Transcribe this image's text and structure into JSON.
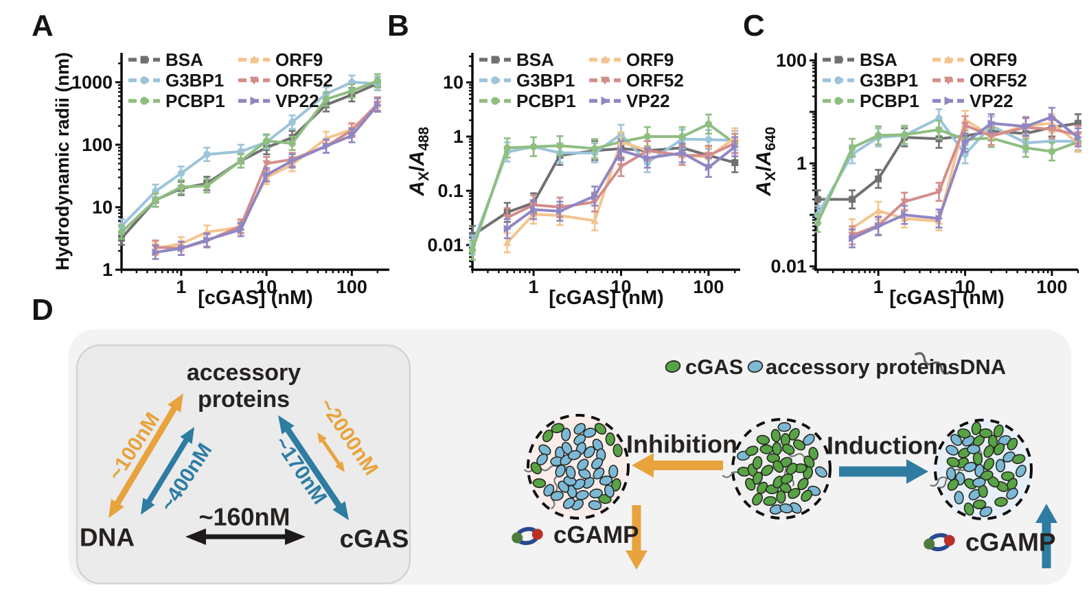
{
  "panels": {
    "a": "A",
    "b": "B",
    "c": "C",
    "d": "D"
  },
  "chart_data": [
    {
      "id": "A",
      "type": "line",
      "xscale": "log",
      "yscale": "log",
      "xlabel": "[cGAS] (nM)",
      "ylabel": "Hydrodynamic radii (nm)",
      "xlim": [
        0.2,
        275
      ],
      "ylim": [
        1,
        2950
      ],
      "err_factor": 1.28,
      "x_ticks": [
        {
          "v": 1,
          "label": "1"
        },
        {
          "v": 10,
          "label": "10"
        },
        {
          "v": 100,
          "label": "100"
        }
      ],
      "y_ticks": [
        {
          "v": 1,
          "label": "1"
        },
        {
          "v": 10,
          "label": "10"
        },
        {
          "v": 100,
          "label": "100"
        },
        {
          "v": 1000,
          "label": "1000"
        }
      ],
      "x": [
        0.2,
        0.5,
        1,
        2,
        5,
        10,
        20,
        50,
        100,
        200
      ],
      "series": [
        {
          "name": "BSA",
          "color": "#707070",
          "marker": "square",
          "values": [
            3.2,
            13,
            20,
            24,
            55,
            90,
            130,
            435,
            630,
            950
          ]
        },
        {
          "name": "G3BP1",
          "color": "#9CC4DB",
          "marker": "circle",
          "values": [
            5,
            18,
            35,
            70,
            78,
            110,
            230,
            650,
            1000,
            950
          ]
        },
        {
          "name": "PCBP1",
          "color": "#8FBE81",
          "marker": "circle",
          "values": [
            4,
            13,
            21,
            22,
            55,
            115,
            105,
            535,
            725,
            1050
          ]
        },
        {
          "name": "ORF9",
          "color": "#F4C48E",
          "marker": "triangle-up",
          "values": [
            null,
            2.2,
            2.6,
            4,
            4.8,
            30,
            48,
            126,
            175,
            440
          ]
        },
        {
          "name": "ORF52",
          "color": "#D38D8B",
          "marker": "triangle-down",
          "values": [
            null,
            2.3,
            2.2,
            2.9,
            5,
            50,
            58,
            95,
            170,
            450
          ]
        },
        {
          "name": "VP22",
          "color": "#9086C3",
          "marker": "triangle-right",
          "values": [
            null,
            1.9,
            2.2,
            3.0,
            4.4,
            33,
            55,
            95,
            140,
            430
          ]
        }
      ]
    },
    {
      "id": "B",
      "type": "line",
      "xscale": "log",
      "yscale": "log",
      "xlabel": "[cGAS] (nM)",
      "ylabel_parts": [
        {
          "t": "A",
          "style": "italic"
        },
        {
          "t": "X",
          "style": "sub"
        },
        {
          "t": "/",
          "style": "normal"
        },
        {
          "t": "A",
          "style": "italic"
        },
        {
          "t": "488",
          "style": "sub"
        }
      ],
      "xlim": [
        0.2,
        230
      ],
      "ylim": [
        0.0035,
        35
      ],
      "err_factor": 1.5,
      "x_ticks": [
        {
          "v": 1,
          "label": "1"
        },
        {
          "v": 10,
          "label": "10"
        },
        {
          "v": 100,
          "label": "100"
        }
      ],
      "y_ticks": [
        {
          "v": 0.01,
          "label": "0.01"
        },
        {
          "v": 0.1,
          "label": "0.1"
        },
        {
          "v": 1,
          "label": "1"
        },
        {
          "v": 10,
          "label": "10"
        }
      ],
      "x": [
        0.2,
        0.5,
        1,
        2,
        5,
        10,
        20,
        50,
        100,
        200
      ],
      "series": [
        {
          "name": "BSA",
          "color": "#707070",
          "marker": "square",
          "values": [
            0.015,
            0.04,
            0.06,
            0.45,
            0.55,
            0.6,
            0.55,
            0.62,
            0.45,
            0.33
          ]
        },
        {
          "name": "G3BP1",
          "color": "#9CC4DB",
          "marker": "circle",
          "values": [
            0.01,
            0.52,
            0.65,
            0.5,
            0.5,
            1.1,
            0.33,
            0.9,
            0.88,
            0.85
          ]
        },
        {
          "name": "PCBP1",
          "color": "#8FBE81",
          "marker": "circle",
          "values": [
            0.008,
            0.62,
            0.65,
            0.68,
            0.6,
            0.8,
            1.0,
            1.0,
            1.7,
            0.75
          ]
        },
        {
          "name": "ORF9",
          "color": "#F4C48E",
          "marker": "triangle-up",
          "values": [
            null,
            0.011,
            0.037,
            0.035,
            0.028,
            0.8,
            0.55,
            0.45,
            0.42,
            0.95
          ]
        },
        {
          "name": "ORF52",
          "color": "#D38D8B",
          "marker": "triangle-down",
          "values": [
            null,
            0.032,
            0.055,
            0.05,
            0.062,
            0.28,
            0.55,
            0.45,
            0.45,
            0.75
          ]
        },
        {
          "name": "VP22",
          "color": "#9086C3",
          "marker": "triangle-right",
          "values": [
            null,
            0.02,
            0.045,
            0.042,
            0.08,
            0.55,
            0.4,
            0.5,
            0.27,
            0.65
          ]
        }
      ]
    },
    {
      "id": "C",
      "type": "line",
      "xscale": "log",
      "yscale": "log",
      "xlabel": "[cGAS] (nM)",
      "ylabel_parts": [
        {
          "t": "A",
          "style": "italic"
        },
        {
          "t": "X",
          "style": "sub"
        },
        {
          "t": "/",
          "style": "normal"
        },
        {
          "t": "A",
          "style": "italic"
        },
        {
          "t": "640",
          "style": "sub"
        }
      ],
      "xlim": [
        0.19,
        200
      ],
      "ylim": [
        0.0086,
        140
      ],
      "err_factor": 1.5,
      "x_ticks": [
        {
          "v": 1,
          "label": "1"
        },
        {
          "v": 10,
          "label": "10"
        },
        {
          "v": 100,
          "label": "100"
        }
      ],
      "y_ticks": [
        {
          "v": 0.01,
          "label": "0.01"
        },
        {
          "v": 1,
          "label": "1"
        },
        {
          "v": 100,
          "label": "100"
        }
      ],
      "x": [
        0.2,
        0.5,
        1,
        2,
        5,
        10,
        20,
        50,
        100,
        200
      ],
      "series": [
        {
          "name": "BSA",
          "color": "#707070",
          "marker": "square",
          "values": [
            0.2,
            0.2,
            0.5,
            3.2,
            3.0,
            3.4,
            4.2,
            3.8,
            5.0,
            6.0
          ]
        },
        {
          "name": "G3BP1",
          "color": "#9CC4DB",
          "marker": "circle",
          "values": [
            0.1,
            1.5,
            3.2,
            3.5,
            7.5,
            1.5,
            5.4,
            2.5,
            2.7,
            2.7
          ]
        },
        {
          "name": "PCBP1",
          "color": "#8FBE81",
          "marker": "circle",
          "values": [
            0.07,
            2.0,
            3.5,
            3.6,
            4.5,
            2.9,
            3.1,
            2.0,
            1.7,
            2.6
          ]
        },
        {
          "name": "ORF9",
          "color": "#F4C48E",
          "marker": "triangle-up",
          "values": [
            null,
            0.055,
            0.12,
            0.085,
            0.075,
            7.0,
            3.4,
            5.4,
            6.0,
            2.5
          ]
        },
        {
          "name": "ORF52",
          "color": "#D38D8B",
          "marker": "triangle-down",
          "values": [
            null,
            0.04,
            0.062,
            0.18,
            0.28,
            5.5,
            3.4,
            5.0,
            4.6,
            3.6
          ]
        },
        {
          "name": "VP22",
          "color": "#9086C3",
          "marker": "triangle-right",
          "values": [
            null,
            0.035,
            0.06,
            0.1,
            0.085,
            2.5,
            6.0,
            5.2,
            8.0,
            3.2
          ]
        }
      ]
    }
  ],
  "diagram": {
    "triangle": {
      "accessory": "accessory\nproteins",
      "dna": "DNA",
      "cgas": "cGAS",
      "kd_dna_accessory": "~100nM",
      "kd_dna_accessory_2": "~400nM",
      "kd_accessory_cgas": "~170nM",
      "kd_accessory_cgas_2": "~2000nM",
      "kd_dna_cgas": "~160nM"
    },
    "legend": {
      "cgas": "cGAS",
      "accessory": "accessory proteins",
      "dna": "DNA"
    },
    "inhibition": "Inhibition",
    "induction": "Induction",
    "cgamp_left": "cGAMP",
    "cgamp_right": "cGAMP",
    "colors": {
      "orange": "#E8A33C",
      "teal": "#2E7CA2",
      "black_arrow": "#1d1a19",
      "green_protein": "#57A345",
      "blue_protein": "#7CB9D6",
      "ring_blue": "#27498F",
      "ring_green": "#4E7B3B",
      "ring_red": "#B93026",
      "big_box_fill": "#f3f3f4",
      "inner_box_fill": "#ebebec",
      "inner_box_stroke": "#d3d3d6",
      "dna_squiggle": "#6a6a6a"
    },
    "condensates": [
      {
        "name": "accessory-rich-condensate",
        "fill": "#fbeeea",
        "green_count": 9,
        "blue_count": 36,
        "squiggles": 3
      },
      {
        "name": "cgas-dna-condensate",
        "fill": "#efefef",
        "green_count": 34,
        "blue_count": 8,
        "squiggles": 3
      },
      {
        "name": "mixed-condensate",
        "fill": "#e7f0f9",
        "green_count": 26,
        "blue_count": 17,
        "squiggles": 3
      }
    ]
  }
}
